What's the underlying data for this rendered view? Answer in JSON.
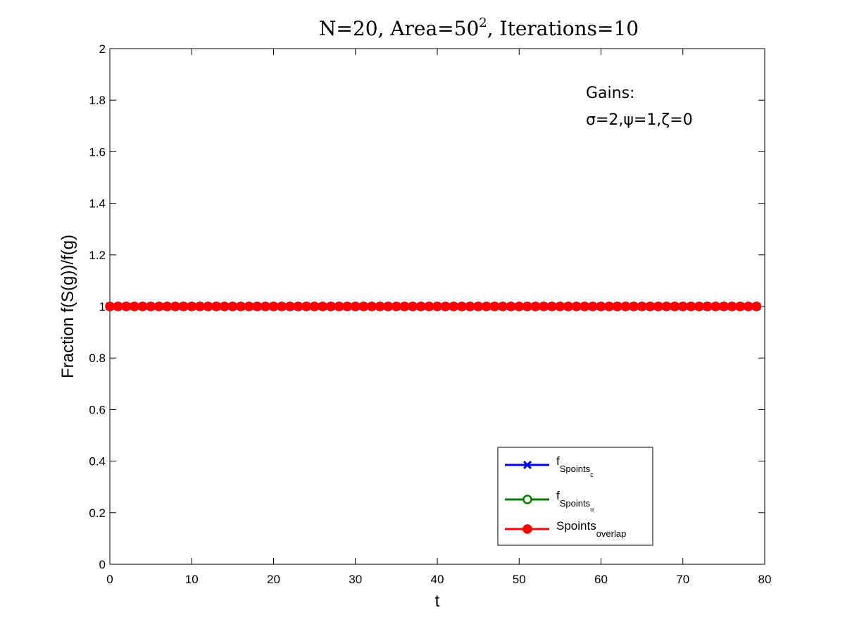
{
  "chart_data": {
    "type": "line",
    "title": {
      "prefix": "N=20, Area=50",
      "superscript": "2",
      "suffix": ", Iterations=10"
    },
    "xlabel": "t",
    "ylabel": "Fraction f(S(g))/f(g)",
    "xlim": [
      0,
      80
    ],
    "ylim": [
      0,
      2
    ],
    "xticks": [
      0,
      10,
      20,
      30,
      40,
      50,
      60,
      70,
      80
    ],
    "yticks": [
      0,
      0.2,
      0.4,
      0.6,
      0.8,
      1,
      1.2,
      1.4,
      1.6,
      1.8,
      2
    ],
    "xtick_labels": [
      "0",
      "10",
      "20",
      "30",
      "40",
      "50",
      "60",
      "70",
      "80"
    ],
    "ytick_labels": [
      "0",
      "0.2",
      "0.4",
      "0.6",
      "0.8",
      "1",
      "1.2",
      "1.4",
      "1.6",
      "1.8",
      "2"
    ],
    "grid": false,
    "x": {
      "start": 0,
      "end": 79,
      "step": 1
    },
    "series": [
      {
        "name": "f_Spoints_c",
        "color": "#0000ff",
        "marker": "x",
        "constant": 1
      },
      {
        "name": "f_Spoints_u",
        "color": "#008000",
        "marker": "o",
        "constant": 1
      },
      {
        "name": "Spoints_overlap",
        "color": "#ff0000",
        "marker": "filled-circle",
        "constant": 1
      }
    ],
    "annotation": {
      "line1": "Gains:",
      "line2": "σ=2,ψ=1,ζ=0"
    },
    "legend": {
      "placement": "bottom-right",
      "entries": [
        {
          "base": "f",
          "sub": "Spoints",
          "subsub": "c"
        },
        {
          "base": "f",
          "sub": "Spoints",
          "subsub": "u"
        },
        {
          "base": "Spoints",
          "sub": "overlap",
          "subsub": ""
        }
      ]
    }
  }
}
